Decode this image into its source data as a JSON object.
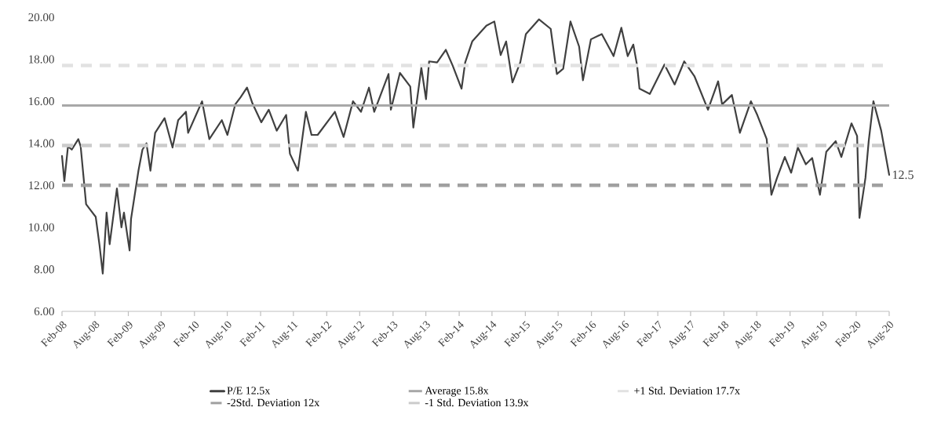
{
  "chart_data": {
    "type": "line",
    "x": [
      "2008-02-01",
      "2008-02-14",
      "2008-03-05",
      "2008-03-26",
      "2008-05-01",
      "2008-05-14",
      "2008-06-13",
      "2008-07-05",
      "2008-08-05",
      "2008-08-26",
      "2008-09-13",
      "2008-10-04",
      "2008-10-21",
      "2008-11-30",
      "2008-12-25",
      "2009-01-08",
      "2009-02-08",
      "2009-02-16",
      "2009-03-29",
      "2009-04-20",
      "2009-05-12",
      "2009-06-03",
      "2009-06-29",
      "2009-08-20",
      "2009-10-03",
      "2009-11-03",
      "2009-12-16",
      "2009-12-28",
      "2010-03-15",
      "2010-04-24",
      "2010-07-02",
      "2010-08-02",
      "2010-09-14",
      "2010-10-14",
      "2010-11-18",
      "2010-12-18",
      "2011-02-05",
      "2011-03-18",
      "2011-05-01",
      "2011-06-22",
      "2011-07-13",
      "2011-08-26",
      "2011-09-17",
      "2011-10-09",
      "2011-11-09",
      "2011-12-13",
      "2012-03-17",
      "2012-05-04",
      "2012-06-25",
      "2012-08-08",
      "2012-09-21",
      "2012-10-20",
      "2013-01-07",
      "2013-01-20",
      "2013-03-11",
      "2013-05-07",
      "2013-05-24",
      "2013-07-07",
      "2013-08-02",
      "2013-08-19",
      "2013-10-02",
      "2013-11-19",
      "2013-12-27",
      "2014-02-14",
      "2014-03-06",
      "2014-04-14",
      "2014-07-01",
      "2014-08-14",
      "2014-09-18",
      "2014-10-18",
      "2014-11-22",
      "2015-01-04",
      "2015-02-04",
      "2015-04-17",
      "2015-06-21",
      "2015-07-25",
      "2015-08-29",
      "2015-10-08",
      "2015-11-25",
      "2015-12-16",
      "2016-01-29",
      "2016-03-29",
      "2016-05-24",
      "2016-06-02",
      "2016-07-15",
      "2016-08-19",
      "2016-09-19",
      "2016-10-10",
      "2016-10-23",
      "2016-12-19",
      "2017-03-10",
      "2017-05-05",
      "2017-06-27",
      "2017-08-22",
      "2017-11-05",
      "2017-12-31",
      "2018-01-22",
      "2018-03-17",
      "2018-04-30",
      "2018-06-30",
      "2018-08-04",
      "2018-09-25",
      "2018-10-21",
      "2018-11-21",
      "2019-01-03",
      "2019-02-07",
      "2019-03-16",
      "2019-04-29",
      "2019-06-03",
      "2019-07-16",
      "2019-08-20",
      "2019-10-11",
      "2019-11-11",
      "2020-01-06",
      "2020-02-06",
      "2020-02-19",
      "2020-03-23",
      "2020-04-10",
      "2020-05-06",
      "2020-06-18",
      "2020-08-01"
    ],
    "series": [
      {
        "name": "P/E 12.5x",
        "color": "#404040",
        "values": [
          13.4,
          12.2,
          13.85,
          13.7,
          14.2,
          13.85,
          11.1,
          10.85,
          10.5,
          9.15,
          7.8,
          10.7,
          9.2,
          11.85,
          10.0,
          10.7,
          8.9,
          10.4,
          12.7,
          13.7,
          14.0,
          12.7,
          14.5,
          15.2,
          13.8,
          15.1,
          15.5,
          14.5,
          16.0,
          14.2,
          15.1,
          14.4,
          15.85,
          16.2,
          16.65,
          15.9,
          15.0,
          15.6,
          14.6,
          15.35,
          13.5,
          12.7,
          14.1,
          15.5,
          14.4,
          14.4,
          15.5,
          14.3,
          16.0,
          15.5,
          16.65,
          15.5,
          17.3,
          15.6,
          17.35,
          16.7,
          14.75,
          17.6,
          16.1,
          17.9,
          17.85,
          18.45,
          17.7,
          16.6,
          17.85,
          18.85,
          19.6,
          19.8,
          18.2,
          18.85,
          16.9,
          17.85,
          19.2,
          19.9,
          19.45,
          17.3,
          17.55,
          19.8,
          18.6,
          17.0,
          18.95,
          19.2,
          18.3,
          18.15,
          19.5,
          18.15,
          18.7,
          17.7,
          16.6,
          16.35,
          17.75,
          16.8,
          17.9,
          17.2,
          15.6,
          16.95,
          15.85,
          16.3,
          14.5,
          16.0,
          15.35,
          14.2,
          11.55,
          12.35,
          13.35,
          12.6,
          13.8,
          13.0,
          13.3,
          11.55,
          13.6,
          14.1,
          13.35,
          14.95,
          14.35,
          10.45,
          12.35,
          14.1,
          16.0,
          14.6,
          12.5
        ]
      }
    ],
    "ref_lines": [
      {
        "axis": "y",
        "value": 15.8,
        "label": "Average 15.8x",
        "color": "#a8a8a8",
        "line_style": "solid"
      },
      {
        "axis": "y",
        "value": 17.7,
        "label": "+1 Std.  Deviation 17.7x",
        "color": "#e2e2e2",
        "line_style": "dashed"
      },
      {
        "axis": "y",
        "value": 12,
        "label": "-2Std. Deviation 12x",
        "color": "#a0a0a0",
        "line_style": "dashed"
      },
      {
        "axis": "y",
        "value": 13.9,
        "label": "-1 Std. Deviation 13.9x",
        "color": "#cbcbcb",
        "line_style": "dashed"
      }
    ],
    "annotations": [
      {
        "text": "12.5",
        "x": "2020-08-01",
        "y": 12.5
      }
    ],
    "xlim": [
      "2008-02-01",
      "2020-08-01"
    ],
    "xticks": [
      {
        "value": "2008-02-01",
        "label": "Feb-08"
      },
      {
        "value": "2008-08-01",
        "label": "Aug-08"
      },
      {
        "value": "2009-02-01",
        "label": "Feb-09"
      },
      {
        "value": "2009-08-01",
        "label": "Aug-09"
      },
      {
        "value": "2010-02-01",
        "label": "Feb-10"
      },
      {
        "value": "2010-08-01",
        "label": "Aug-10"
      },
      {
        "value": "2011-02-01",
        "label": "Feb-11"
      },
      {
        "value": "2011-08-01",
        "label": "Aug-11"
      },
      {
        "value": "2012-02-01",
        "label": "Feb-12"
      },
      {
        "value": "2012-08-01",
        "label": "Aug-12"
      },
      {
        "value": "2013-02-01",
        "label": "Feb-13"
      },
      {
        "value": "2013-08-01",
        "label": "Aug-13"
      },
      {
        "value": "2014-02-01",
        "label": "Feb-14"
      },
      {
        "value": "2014-08-01",
        "label": "Aug-14"
      },
      {
        "value": "2015-02-01",
        "label": "Feb-15"
      },
      {
        "value": "2015-08-01",
        "label": "Aug-15"
      },
      {
        "value": "2016-02-01",
        "label": "Feb-16"
      },
      {
        "value": "2016-08-01",
        "label": "Aug-16"
      },
      {
        "value": "2017-02-01",
        "label": "Feb-17"
      },
      {
        "value": "2017-08-01",
        "label": "Aug-17"
      },
      {
        "value": "2018-02-01",
        "label": "Feb-18"
      },
      {
        "value": "2018-08-01",
        "label": "Aug-18"
      },
      {
        "value": "2019-02-01",
        "label": "Feb-19"
      },
      {
        "value": "2019-08-01",
        "label": "Aug-19"
      },
      {
        "value": "2020-02-01",
        "label": "Feb-20"
      },
      {
        "value": "2020-08-01",
        "label": "Aug-20"
      }
    ],
    "ylim": [
      6,
      20
    ],
    "yticks": [
      {
        "value": 6,
        "label": "6.00"
      },
      {
        "value": 8,
        "label": "8.00"
      },
      {
        "value": 10,
        "label": "10.00"
      },
      {
        "value": 12,
        "label": "12.00"
      },
      {
        "value": 14,
        "label": "14.00"
      },
      {
        "value": 16,
        "label": "16.00"
      },
      {
        "value": 18,
        "label": "18.00"
      },
      {
        "value": 20,
        "label": "20.00"
      }
    ],
    "legend": "bottom",
    "grid": false,
    "marker": "none",
    "line_style": "solid"
  }
}
